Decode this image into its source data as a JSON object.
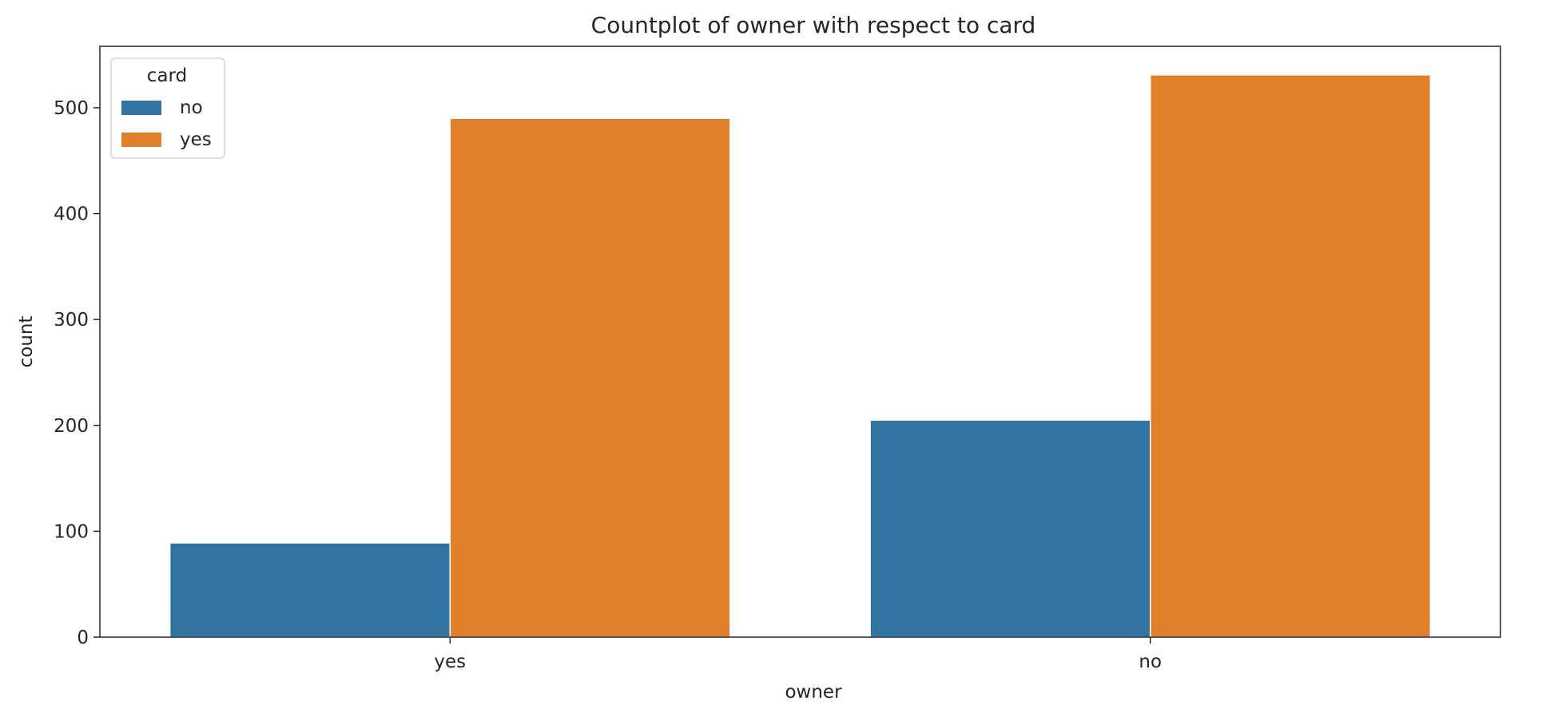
{
  "chart_data": {
    "type": "bar",
    "title": "Countplot of owner with respect to card",
    "xlabel": "owner",
    "ylabel": "count",
    "categories": [
      "yes",
      "no"
    ],
    "series": [
      {
        "name": "no",
        "values": [
          89,
          205
        ],
        "color": "#3274a1"
      },
      {
        "name": "yes",
        "values": [
          490,
          531
        ],
        "color": "#e1812c"
      }
    ],
    "ylim": [
      0,
      558
    ],
    "yticks": [
      0,
      100,
      200,
      300,
      400,
      500
    ],
    "grid": false,
    "legend": {
      "title": "card",
      "placement": "upper-left"
    }
  }
}
